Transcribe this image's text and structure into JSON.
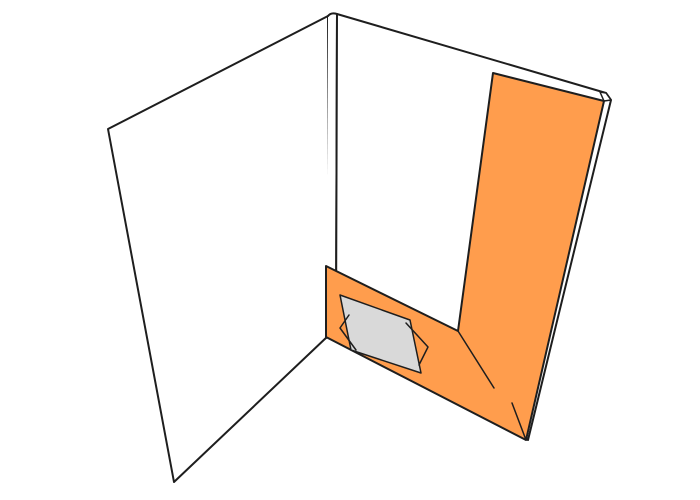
{
  "illustration": {
    "subject": "open-presentation-folder",
    "colors": {
      "background": "#ffffff",
      "paper": "#ffffff",
      "outline": "#1e1e1e",
      "pocket": "#ff9d4d",
      "card_slot": "#d9d9d9"
    }
  }
}
